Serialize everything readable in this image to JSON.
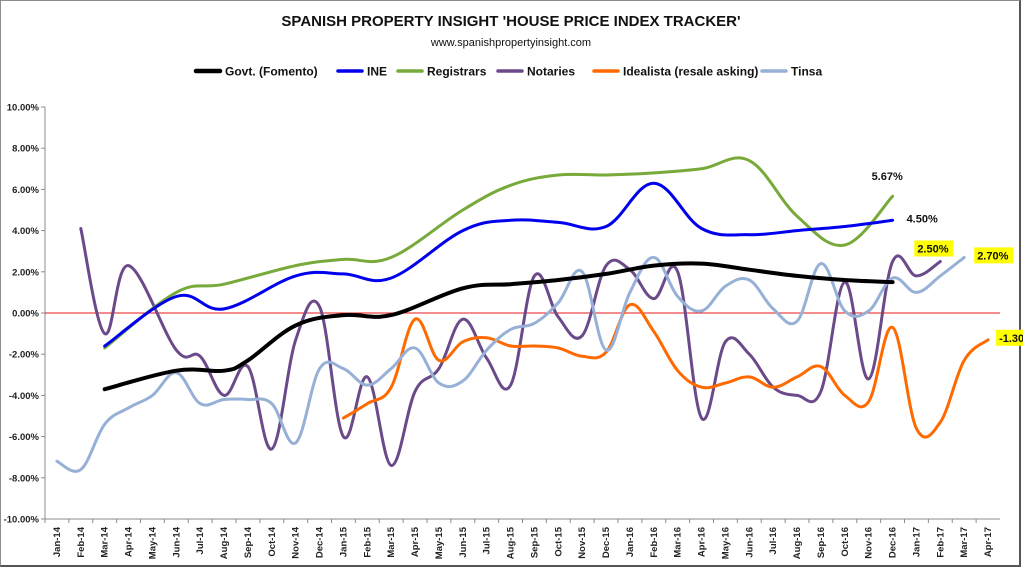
{
  "chart_data": {
    "type": "line",
    "title": "SPANISH PROPERTY INSIGHT 'HOUSE PRICE INDEX TRACKER'",
    "subtitle": "www.spanishpropertyinsight.com",
    "xlabel": "",
    "ylabel": "",
    "ylim": [
      -10,
      10
    ],
    "y_ticks": [
      "-10.00%",
      "-8.00%",
      "-6.00%",
      "-4.00%",
      "-2.00%",
      "0.00%",
      "2.00%",
      "4.00%",
      "6.00%",
      "8.00%",
      "10.00%"
    ],
    "grid": false,
    "legend_position": "top",
    "categories": [
      "Jan-14",
      "Feb-14",
      "Mar-14",
      "Apr-14",
      "May-14",
      "Jun-14",
      "Jul-14",
      "Aug-14",
      "Sep-14",
      "Oct-14",
      "Nov-14",
      "Dec-14",
      "Jan-15",
      "Feb-15",
      "Mar-15",
      "Apr-15",
      "May-15",
      "Jun-15",
      "Jul-15",
      "Aug-15",
      "Sep-15",
      "Oct-15",
      "Nov-15",
      "Dec-15",
      "Jan-16",
      "Feb-16",
      "Mar-16",
      "Apr-16",
      "May-16",
      "Jun-16",
      "Jul-16",
      "Aug-16",
      "Sep-16",
      "Oct-16",
      "Nov-16",
      "Dec-16",
      "Jan-17",
      "Feb-17",
      "Mar-17",
      "Apr-17"
    ],
    "zero_line_color": "#e8191c",
    "series": [
      {
        "name": "Govt. (Fomento)",
        "color": "#000000",
        "width": 4,
        "values": [
          null,
          null,
          -3.7,
          null,
          null,
          -2.8,
          null,
          -2.8,
          -2.3,
          null,
          -0.6,
          null,
          -0.1,
          null,
          -0.1,
          null,
          null,
          1.2,
          null,
          1.4,
          null,
          1.6,
          null,
          1.9,
          null,
          2.3,
          null,
          2.4,
          null,
          2.1,
          null,
          1.8,
          null,
          1.6,
          null,
          1.5,
          null,
          null,
          null,
          null
        ],
        "end_label": ""
      },
      {
        "name": "INE",
        "color": "#0000ee",
        "width": 3,
        "values": [
          null,
          null,
          -1.6,
          null,
          null,
          0.8,
          null,
          0.2,
          null,
          null,
          1.8,
          null,
          1.9,
          null,
          1.7,
          null,
          null,
          4.0,
          null,
          4.5,
          null,
          4.4,
          null,
          4.2,
          null,
          6.3,
          null,
          4.1,
          null,
          3.8,
          null,
          4.0,
          null,
          4.2,
          null,
          4.5,
          null,
          null,
          null,
          null
        ],
        "end_label": "4.50%"
      },
      {
        "name": "Registrars",
        "color": "#77aa3a",
        "width": 3,
        "values": [
          null,
          null,
          -1.7,
          null,
          null,
          1.0,
          null,
          1.4,
          null,
          null,
          2.3,
          null,
          2.6,
          null,
          2.7,
          null,
          null,
          5.0,
          null,
          6.2,
          null,
          6.7,
          null,
          6.7,
          null,
          6.8,
          null,
          7.0,
          null,
          7.4,
          null,
          4.7,
          null,
          3.3,
          null,
          5.67,
          null,
          null,
          null,
          null
        ],
        "end_label": "5.67%"
      },
      {
        "name": "Notaries",
        "color": "#6b4a8a",
        "width": 3,
        "values": [
          null,
          4.1,
          -1.0,
          2.3,
          null,
          -1.8,
          -2.1,
          -4.0,
          -2.6,
          -6.6,
          -1.3,
          0.3,
          -6.0,
          -3.1,
          -7.4,
          -3.8,
          -2.7,
          -0.3,
          -2.2,
          -3.5,
          1.8,
          -0.2,
          -1.1,
          2.3,
          2.1,
          0.7,
          2.0,
          -5.1,
          -1.4,
          -2.0,
          -3.6,
          -4.0,
          -3.8,
          1.5,
          -3.2,
          2.5,
          1.8,
          2.5,
          null,
          null
        ],
        "end_label": "2.50%"
      },
      {
        "name": "Idealista (resale asking)",
        "color": "#ff6a00",
        "width": 3,
        "values": [
          null,
          null,
          null,
          null,
          null,
          null,
          null,
          null,
          null,
          null,
          null,
          null,
          -5.1,
          -4.4,
          -3.6,
          -0.3,
          -2.3,
          -1.4,
          -1.2,
          -1.6,
          -1.6,
          -1.7,
          -2.1,
          -1.9,
          0.4,
          -0.9,
          -2.8,
          -3.6,
          -3.4,
          -3.1,
          -3.6,
          -3.1,
          -2.6,
          -4.0,
          -4.3,
          -0.7,
          -5.6,
          -5.3,
          -2.3,
          -1.3
        ],
        "end_label": "-1.30%"
      },
      {
        "name": "Tinsa",
        "color": "#96b0d6",
        "width": 3,
        "values": [
          -7.2,
          -7.6,
          -5.4,
          -4.6,
          -4.0,
          -2.9,
          -4.4,
          -4.2,
          -4.2,
          -4.4,
          -6.3,
          -2.7,
          -2.7,
          -3.5,
          -2.7,
          -1.7,
          -3.4,
          -3.3,
          -1.8,
          -0.8,
          -0.5,
          0.5,
          2.0,
          -1.8,
          1.0,
          2.7,
          0.8,
          0.1,
          1.3,
          1.6,
          0.2,
          -0.4,
          2.4,
          0.1,
          0.1,
          1.7,
          1.0,
          1.8,
          2.7,
          null
        ],
        "end_label": "2.70%"
      }
    ],
    "annotations": [
      {
        "text": "5.67%",
        "series": "Registrars",
        "highlight": false
      },
      {
        "text": "4.50%",
        "series": "INE",
        "highlight": false
      },
      {
        "text": "2.50%",
        "series": "Notaries",
        "highlight": true
      },
      {
        "text": "2.70%",
        "series": "Tinsa",
        "highlight": true
      },
      {
        "text": "-1.30%",
        "series": "Idealista (resale asking)",
        "highlight": true
      }
    ],
    "highlight_color": "#ffff00"
  }
}
